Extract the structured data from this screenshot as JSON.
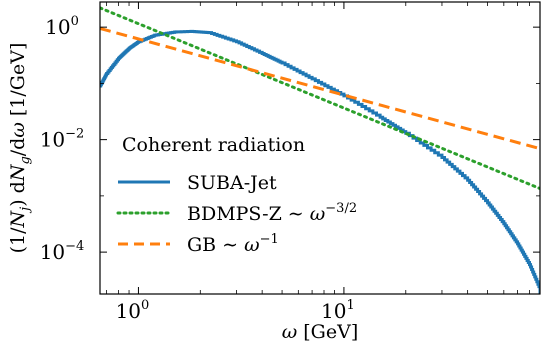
{
  "chart_data": {
    "type": "line",
    "xlabel": "ω [GeV]",
    "ylabel": "(1/N_j) dN_g/dω [1/GeV]",
    "x_scale": "log",
    "y_scale": "log",
    "xlim": [
      0.65,
      90
    ],
    "ylim": [
      1.8e-05,
      2.8
    ],
    "x_ticks": [
      {
        "value": 1,
        "label": "10",
        "exp": "0"
      },
      {
        "value": 10,
        "label": "10",
        "exp": "1"
      }
    ],
    "y_ticks": [
      {
        "value": 1,
        "label": "10",
        "exp": "0"
      },
      {
        "value": 0.01,
        "label": "10",
        "exp": "−2"
      },
      {
        "value": 0.0001,
        "label": "10",
        "exp": "−4"
      }
    ],
    "legend": {
      "title": "Coherent radiation",
      "placement": "lower-left"
    },
    "series": [
      {
        "name": "SUBA-Jet",
        "color": "#1f77b4",
        "style": "step",
        "x": [
          0.65,
          0.7,
          0.8,
          0.9,
          1.0,
          1.2,
          1.5,
          1.8,
          2.2,
          3,
          4,
          5,
          7,
          10,
          15,
          20,
          30,
          40,
          50,
          60,
          70,
          80,
          90
        ],
        "y": [
          0.09,
          0.15,
          0.28,
          0.42,
          0.55,
          0.72,
          0.82,
          0.84,
          0.8,
          0.55,
          0.34,
          0.23,
          0.12,
          0.06,
          0.025,
          0.013,
          0.0048,
          0.0019,
          0.00075,
          0.00032,
          0.00014,
          6e-05,
          2.2e-05
        ]
      },
      {
        "name": "BDMPS-Z ∼ ω^{−3/2}",
        "color": "#2ca02c",
        "style": "dotted",
        "x": [
          0.65,
          90
        ],
        "y": [
          2.2,
          0.00135
        ]
      },
      {
        "name": "GB ∼ ω^{−1}",
        "color": "#ff7f0e",
        "style": "dashed",
        "x": [
          0.65,
          90
        ],
        "y": [
          0.95,
          0.0069
        ]
      }
    ]
  }
}
